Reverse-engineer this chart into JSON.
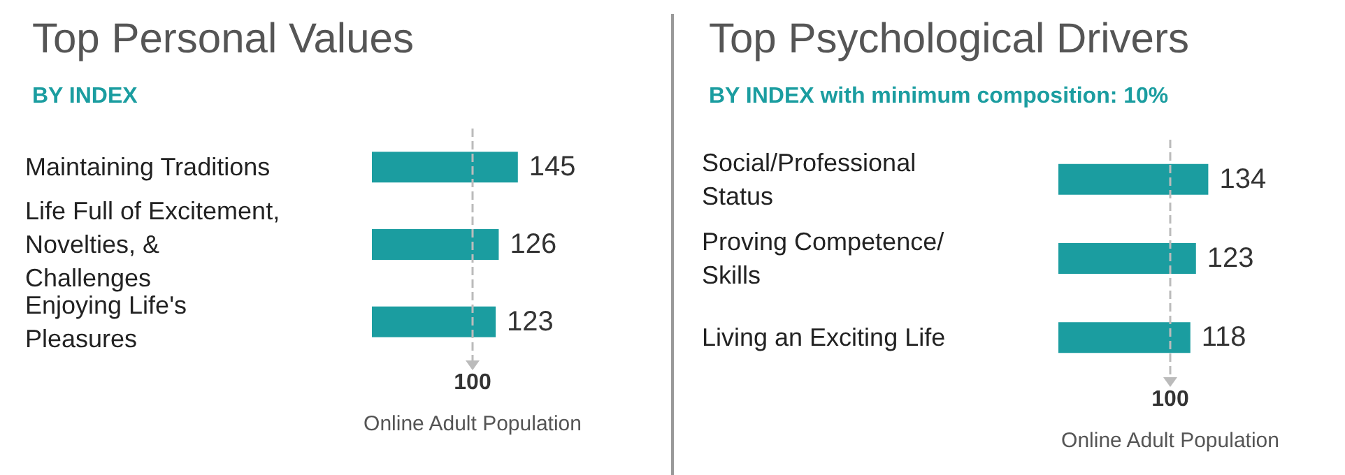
{
  "chart_data": [
    {
      "type": "bar",
      "title": "Top Personal Values",
      "subtitle": "BY INDEX",
      "xlabel": "Online Adult Population",
      "orientation": "horizontal",
      "categories": [
        "Maintaining Traditions",
        "Life Full of Excitement, Novelties, & Challenges",
        "Enjoying Life's Pleasures"
      ],
      "values": [
        145,
        126,
        123
      ],
      "color": "#1b9da0",
      "tick_labels": "y",
      "data_labels": true,
      "ref_lines": [
        {
          "axis": "x",
          "value": 100,
          "label": "100",
          "color": "#bbbbbb",
          "line_style": "dashed"
        }
      ]
    },
    {
      "type": "bar",
      "title": "Top Psychological Drivers",
      "subtitle": "BY INDEX with minimum composition: 10%",
      "xlabel": "Online Adult Population",
      "orientation": "horizontal",
      "categories": [
        "Social/Professional Status",
        "Proving Competence/Skills",
        "Living an Exciting Life"
      ],
      "values": [
        134,
        123,
        118
      ],
      "color": "#1b9da0",
      "tick_labels": "y",
      "data_labels": true,
      "ref_lines": [
        {
          "axis": "x",
          "value": 100,
          "label": "100",
          "color": "#bbbbbb",
          "line_style": "dashed"
        }
      ]
    }
  ]
}
